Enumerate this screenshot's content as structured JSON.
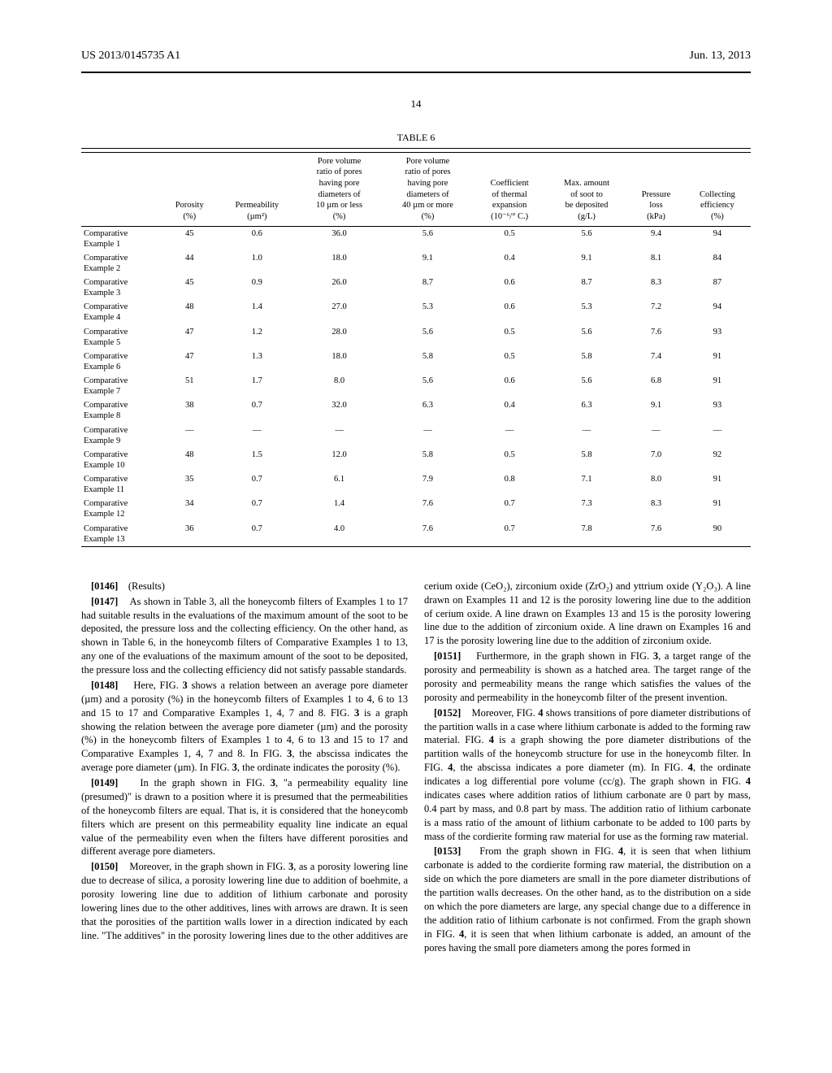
{
  "header": {
    "left": "US 2013/0145735 A1",
    "right": "Jun. 13, 2013"
  },
  "page_number": "14",
  "table": {
    "title": "TABLE 6",
    "columns": [
      "",
      "Porosity\n(%)",
      "Permeability\n(µm²)",
      "Pore volume\nratio of pores\nhaving pore\ndiameters of\n10 µm or less\n(%)",
      "Pore volume\nratio of pores\nhaving pore\ndiameters of\n40 µm or more\n(%)",
      "Coefficient\nof thermal\nexpansion\n(10⁻⁶/° C.)",
      "Max. amount\nof soot to\nbe deposited\n(g/L)",
      "Pressure\nloss\n(kPa)",
      "Collecting\nefficiency\n(%)"
    ],
    "rows": [
      {
        "label": "Comparative\nExample 1",
        "cells": [
          "45",
          "0.6",
          "36.0",
          "5.6",
          "0.5",
          "5.6",
          "9.4",
          "94"
        ]
      },
      {
        "label": "Comparative\nExample 2",
        "cells": [
          "44",
          "1.0",
          "18.0",
          "9.1",
          "0.4",
          "9.1",
          "8.1",
          "84"
        ]
      },
      {
        "label": "Comparative\nExample 3",
        "cells": [
          "45",
          "0.9",
          "26.0",
          "8.7",
          "0.6",
          "8.7",
          "8.3",
          "87"
        ]
      },
      {
        "label": "Comparative\nExample 4",
        "cells": [
          "48",
          "1.4",
          "27.0",
          "5.3",
          "0.6",
          "5.3",
          "7.2",
          "94"
        ]
      },
      {
        "label": "Comparative\nExample 5",
        "cells": [
          "47",
          "1.2",
          "28.0",
          "5.6",
          "0.5",
          "5.6",
          "7.6",
          "93"
        ]
      },
      {
        "label": "Comparative\nExample 6",
        "cells": [
          "47",
          "1.3",
          "18.0",
          "5.8",
          "0.5",
          "5.8",
          "7.4",
          "91"
        ]
      },
      {
        "label": "Comparative\nExample 7",
        "cells": [
          "51",
          "1.7",
          "8.0",
          "5.6",
          "0.6",
          "5.6",
          "6.8",
          "91"
        ]
      },
      {
        "label": "Comparative\nExample 8",
        "cells": [
          "38",
          "0.7",
          "32.0",
          "6.3",
          "0.4",
          "6.3",
          "9.1",
          "93"
        ]
      },
      {
        "label": "Comparative\nExample 9",
        "cells": [
          "—",
          "—",
          "—",
          "—",
          "—",
          "—",
          "—",
          "—"
        ]
      },
      {
        "label": "Comparative\nExample 10",
        "cells": [
          "48",
          "1.5",
          "12.0",
          "5.8",
          "0.5",
          "5.8",
          "7.0",
          "92"
        ]
      },
      {
        "label": "Comparative\nExample 11",
        "cells": [
          "35",
          "0.7",
          "6.1",
          "7.9",
          "0.8",
          "7.1",
          "8.0",
          "91"
        ]
      },
      {
        "label": "Comparative\nExample 12",
        "cells": [
          "34",
          "0.7",
          "1.4",
          "7.6",
          "0.7",
          "7.3",
          "8.3",
          "91"
        ]
      },
      {
        "label": "Comparative\nExample 13",
        "cells": [
          "36",
          "0.7",
          "4.0",
          "7.6",
          "0.7",
          "7.8",
          "7.6",
          "90"
        ]
      }
    ]
  },
  "body": {
    "section_head": {
      "num": "[0146]",
      "text": "(Results)"
    },
    "paragraphs": [
      {
        "num": "[0147]",
        "text": "As shown in Table 3, all the honeycomb filters of Examples 1 to 17 had suitable results in the evaluations of the maximum amount of the soot to be deposited, the pressure loss and the collecting efficiency. On the other hand, as shown in Table 6, in the honeycomb filters of Comparative Examples 1 to 13, any one of the evaluations of the maximum amount of the soot to be deposited, the pressure loss and the collecting efficiency did not satisfy passable standards."
      },
      {
        "num": "[0148]",
        "text": "Here, FIG. 3 shows a relation between an average pore diameter (µm) and a porosity (%) in the honeycomb filters of Examples 1 to 4, 6 to 13 and 15 to 17 and Comparative Examples 1, 4, 7 and 8. FIG. 3 is a graph showing the relation between the average pore diameter (µm) and the porosity (%) in the honeycomb filters of Examples 1 to 4, 6 to 13 and 15 to 17 and Comparative Examples 1, 4, 7 and 8. In FIG. 3, the abscissa indicates the average pore diameter (µm). In FIG. 3, the ordinate indicates the porosity (%)."
      },
      {
        "num": "[0149]",
        "text": "In the graph shown in FIG. 3, \"a permeability equality line (presumed)\" is drawn to a position where it is presumed that the permeabilities of the honeycomb filters are equal. That is, it is considered that the honeycomb filters which are present on this permeability equality line indicate an equal value of the permeability even when the filters have different porosities and different average pore diameters."
      },
      {
        "num": "[0150]",
        "text": "Moreover, in the graph shown in FIG. 3, as a porosity lowering line due to decrease of silica, a porosity lowering line due to addition of boehmite, a porosity lowering line due to addition of lithium carbonate and porosity lowering lines due to the other additives, lines with arrows are drawn. It is seen that the porosities of the partition walls lower in a direction indicated by each line. \"The additives\" in the porosity lowering lines due to the other additives are cerium oxide (CeO₂), zirconium oxide (ZrO₂) and yttrium oxide (Y₂O₃). A line drawn on Examples 11 and 12 is the porosity lowering line due to the addition of cerium oxide. A line drawn on Examples 13 and 15 is the porosity lowering line due to the addition of zirconium oxide. A line drawn on Examples 16 and 17 is the porosity lowering line due to the addition of zirconium oxide."
      },
      {
        "num": "[0151]",
        "text": "Furthermore, in the graph shown in FIG. 3, a target range of the porosity and permeability is shown as a hatched area. The target range of the porosity and permeability means the range which satisfies the values of the porosity and permeability in the honeycomb filter of the present invention."
      },
      {
        "num": "[0152]",
        "text": "Moreover, FIG. 4 shows transitions of pore diameter distributions of the partition walls in a case where lithium carbonate is added to the forming raw material. FIG. 4 is a graph showing the pore diameter distributions of the partition walls of the honeycomb structure for use in the honeycomb filter. In FIG. 4, the abscissa indicates a pore diameter (m). In FIG. 4, the ordinate indicates a log differential pore volume (cc/g). The graph shown in FIG. 4 indicates cases where addition ratios of lithium carbonate are 0 part by mass, 0.4 part by mass, and 0.8 part by mass. The addition ratio of lithium carbonate is a mass ratio of the amount of lithium carbonate to be added to 100 parts by mass of the cordierite forming raw material for use as the forming raw material."
      },
      {
        "num": "[0153]",
        "text": "From the graph shown in FIG. 4, it is seen that when lithium carbonate is added to the cordierite forming raw material, the distribution on a side on which the pore diameters are small in the pore diameter distributions of the partition walls decreases. On the other hand, as to the distribution on a side on which the pore diameters are large, any special change due to a difference in the addition ratio of lithium carbonate is not confirmed. From the graph shown in FIG. 4, it is seen that when lithium carbonate is added, an amount of the pores having the small pore diameters among the pores formed in"
      }
    ]
  }
}
